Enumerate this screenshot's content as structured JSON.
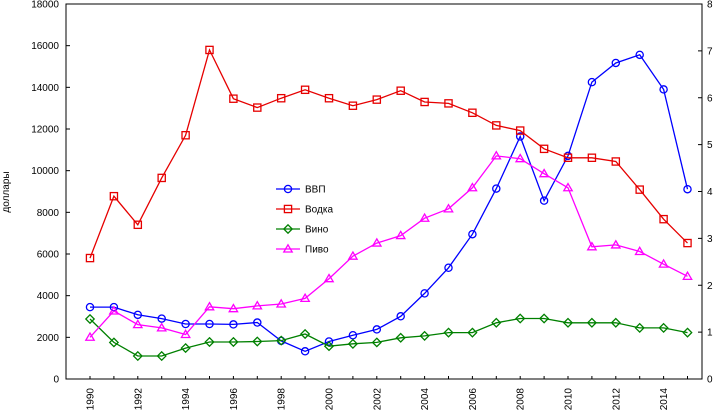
{
  "chart_data": {
    "type": "line",
    "title": "",
    "xlabel": "",
    "ylabel": "доллары",
    "y2label": "",
    "x": [
      1990,
      1991,
      1992,
      1993,
      1994,
      1995,
      1996,
      1997,
      1998,
      1999,
      2000,
      2001,
      2002,
      2003,
      2004,
      2005,
      2006,
      2007,
      2008,
      2009,
      2010,
      2011,
      2012,
      2013,
      2014,
      2015
    ],
    "xticks": [
      "1990",
      "1992",
      "1994",
      "1996",
      "1998",
      "2000",
      "2002",
      "2004",
      "2006",
      "2008",
      "2010",
      "2012",
      "2014"
    ],
    "ylim": [
      0,
      18000
    ],
    "yticks": [
      "0",
      "2000",
      "4000",
      "6000",
      "8000",
      "10000",
      "12000",
      "14000",
      "16000",
      "18000"
    ],
    "y2lim": [
      0,
      8
    ],
    "y2ticks": [
      "0",
      "1",
      "2",
      "3",
      "4",
      "5",
      "6",
      "7",
      "8"
    ],
    "grid": false,
    "legend_position": "center",
    "series": [
      {
        "name": "ВВП",
        "axis": "left",
        "color": "#0000ff",
        "marker": "circle",
        "values": [
          3450,
          3450,
          3080,
          2900,
          2640,
          2640,
          2620,
          2710,
          1830,
          1330,
          1800,
          2100,
          2380,
          3010,
          4110,
          5340,
          6950,
          9140,
          11640,
          8560,
          10710,
          14250,
          15170,
          15560,
          13900,
          9110
        ]
      },
      {
        "name": "Водка",
        "axis": "right",
        "color": "#e60000",
        "marker": "square",
        "values": [
          2.58,
          3.9,
          3.29,
          4.29,
          5.2,
          7.02,
          5.98,
          5.79,
          5.99,
          6.17,
          5.99,
          5.83,
          5.96,
          6.15,
          5.91,
          5.88,
          5.68,
          5.41,
          5.3,
          4.91,
          4.72,
          4.72,
          4.64,
          4.04,
          3.41,
          2.9
        ]
      },
      {
        "name": "Вино",
        "axis": "right",
        "color": "#008000",
        "marker": "diamond",
        "values": [
          1.28,
          0.78,
          0.49,
          0.49,
          0.66,
          0.79,
          0.79,
          0.8,
          0.82,
          0.96,
          0.7,
          0.75,
          0.78,
          0.88,
          0.92,
          0.99,
          0.99,
          1.2,
          1.29,
          1.29,
          1.2,
          1.2,
          1.2,
          1.09,
          1.09,
          0.99
        ]
      },
      {
        "name": "Пиво",
        "axis": "right",
        "color": "#ff00ff",
        "marker": "triangle",
        "values": [
          0.89,
          1.45,
          1.16,
          1.09,
          0.95,
          1.54,
          1.5,
          1.56,
          1.6,
          1.72,
          2.14,
          2.62,
          2.9,
          3.06,
          3.43,
          3.63,
          4.08,
          4.76,
          4.7,
          4.38,
          4.08,
          2.82,
          2.86,
          2.72,
          2.45,
          2.19
        ]
      }
    ]
  }
}
